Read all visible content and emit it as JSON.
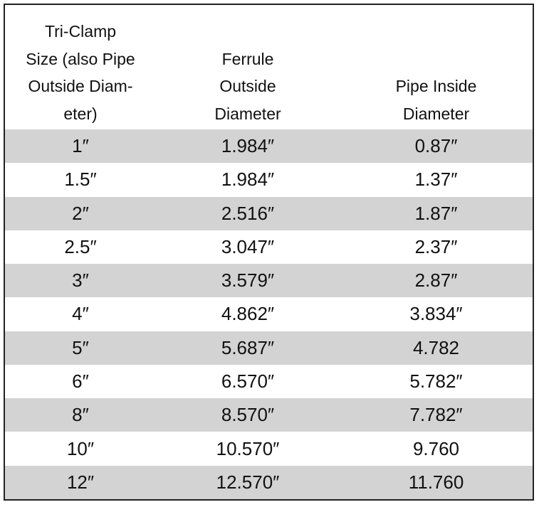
{
  "table": {
    "header": [
      [
        "Tri-Clamp",
        "Size (also Pipe",
        "Outside Diam-",
        "eter)"
      ],
      [
        "Ferrule",
        "Outside",
        "Diameter"
      ],
      [
        "Pipe Inside",
        "Diameter"
      ]
    ],
    "rows": [
      [
        "1″",
        "1.984″",
        "0.87″"
      ],
      [
        "1.5″",
        "1.984″",
        "1.37″"
      ],
      [
        "2″",
        "2.516″",
        "1.87″"
      ],
      [
        "2.5″",
        "3.047″",
        "2.37″"
      ],
      [
        "3″",
        "3.579″",
        "2.87″"
      ],
      [
        "4″",
        "4.862″",
        "3.834″"
      ],
      [
        "5″",
        "5.687″",
        "4.782"
      ],
      [
        "6″",
        "6.570″",
        "5.782″"
      ],
      [
        "8″",
        "8.570″",
        "7.782″"
      ],
      [
        "10″",
        "10.570″",
        "9.760"
      ],
      [
        "12″",
        "12.570″",
        "11.760"
      ]
    ]
  }
}
